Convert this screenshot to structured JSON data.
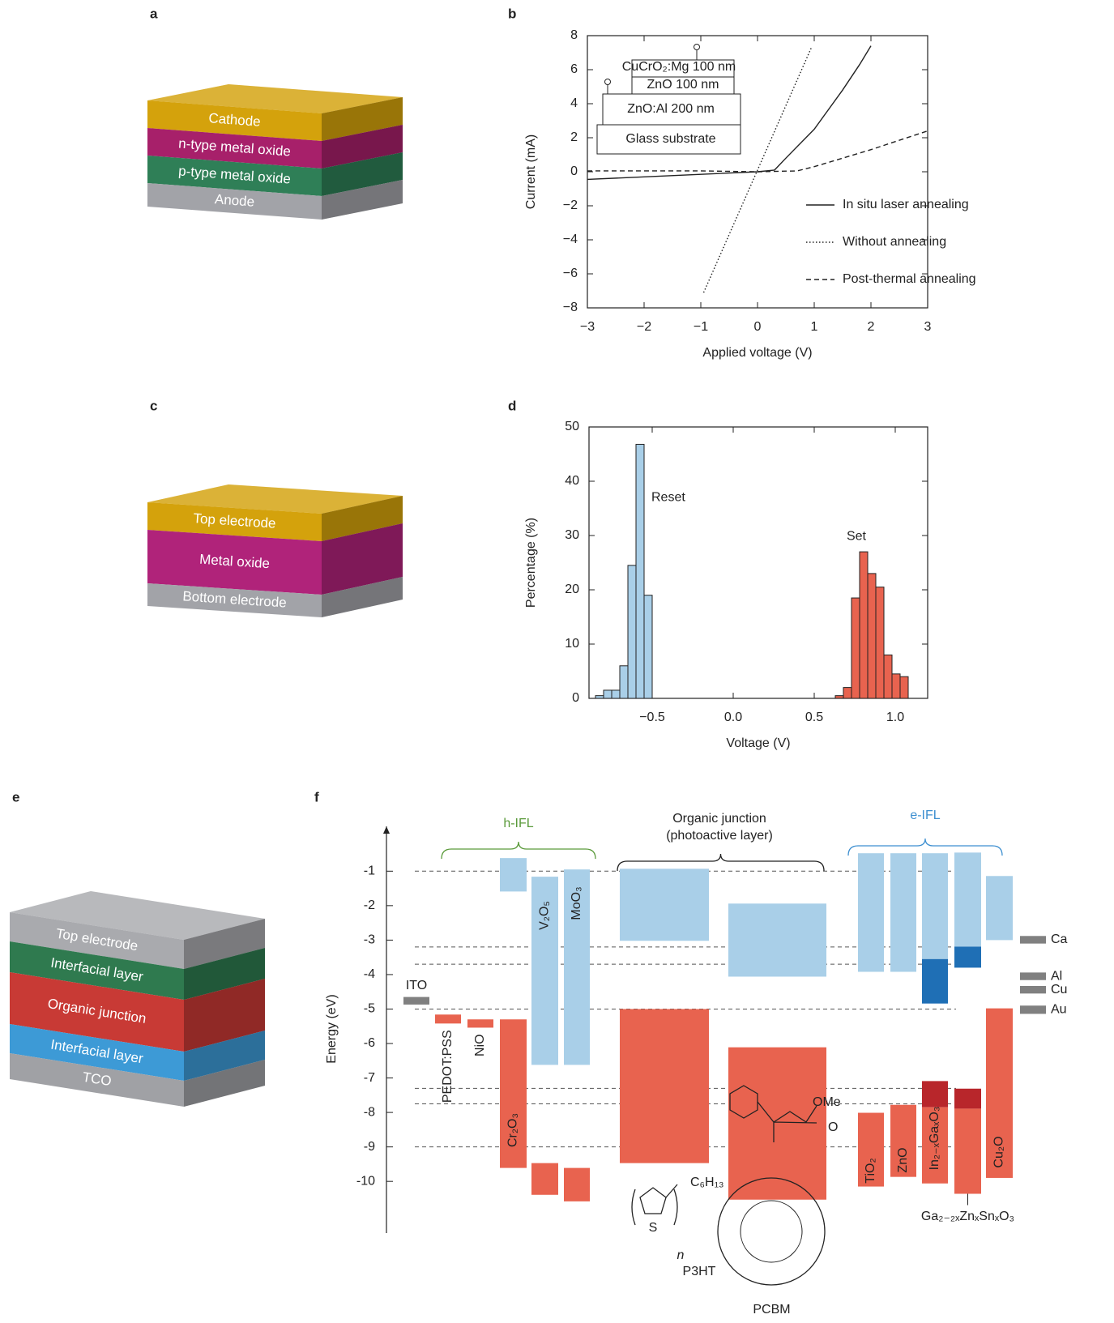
{
  "panel_labels": [
    "a",
    "b",
    "c",
    "d",
    "e",
    "f"
  ],
  "diagram_a": {
    "layers": [
      {
        "label": "Cathode",
        "color": "#d4a20c"
      },
      {
        "label": "n-type metal oxide",
        "color": "#a7206a"
      },
      {
        "label": "p-type metal oxide",
        "color": "#2f7f57"
      },
      {
        "label": "Anode",
        "color": "#a2a3a8"
      }
    ]
  },
  "diagram_c": {
    "layers": [
      {
        "label": "Top electrode",
        "color": "#d4a20c"
      },
      {
        "label": "Metal oxide",
        "color": "#b0237a"
      },
      {
        "label": "Bottom electrode",
        "color": "#a2a3a8"
      }
    ]
  },
  "diagram_e": {
    "layers": [
      {
        "label": "Top electrode",
        "color": "#a9aaae"
      },
      {
        "label": "Interfacial layer",
        "color": "#2f7a4f"
      },
      {
        "label": "Organic junction",
        "color": "#c83a35"
      },
      {
        "label": "Interfacial layer",
        "color": "#3d9ad6"
      },
      {
        "label": "TCO",
        "color": "#a0a1a5"
      }
    ]
  },
  "chart_data": [
    {
      "type": "line",
      "x_label": "Applied voltage (V)",
      "y_label": "Current (mA)",
      "xlim": [
        -3,
        3
      ],
      "ylim": [
        -8,
        8
      ],
      "xticks": [
        {
          "value": -3,
          "label": "−3"
        },
        {
          "value": -2,
          "label": "−2"
        },
        {
          "value": -1,
          "label": "−1"
        },
        0,
        1,
        2,
        3
      ],
      "yticks": [
        {
          "value": -8,
          "label": "−8"
        },
        {
          "value": -6,
          "label": "−6"
        },
        {
          "value": -4,
          "label": "−4"
        },
        {
          "value": -2,
          "label": "−2"
        },
        0,
        2,
        4,
        6,
        8
      ],
      "legend": "lower right",
      "series": [
        {
          "name": "In situ laser annealing",
          "color": "#222222",
          "style": "solid",
          "x": [
            -3,
            -2,
            -1,
            0,
            0.3,
            0.5,
            1,
            1.5,
            1.8,
            2
          ],
          "values": [
            -0.45,
            -0.3,
            -0.15,
            0,
            0.1,
            0.8,
            2.5,
            4.8,
            6.3,
            7.4
          ]
        },
        {
          "name": "Without annealing",
          "color": "#222222",
          "style": "dotted",
          "x": [
            -0.95,
            0.95
          ],
          "values": [
            -7.1,
            7.3
          ]
        },
        {
          "name": "Post-thermal annealing",
          "color": "#222222",
          "style": "dashed",
          "x": [
            -3,
            -1,
            0,
            0.7,
            1,
            2,
            3
          ],
          "values": [
            0.05,
            0.05,
            0,
            0.05,
            0.3,
            1.3,
            2.4
          ]
        }
      ],
      "inset": [
        "CuCrO₂:Mg 100 nm",
        "ZnO 100 nm",
        "ZnO:Al 200 nm",
        "Glass substrate"
      ]
    },
    {
      "type": "histogram",
      "x_label": "Voltage (V)",
      "y_label": "Percentage (%)",
      "xlim": [
        -0.89,
        1.2
      ],
      "ylim": [
        0,
        50
      ],
      "xticks": [
        {
          "value": -0.5,
          "label": "−0.5"
        },
        {
          "value": 0,
          "label": "0.0"
        },
        {
          "value": 0.5,
          "label": "0.5"
        },
        {
          "value": 1,
          "label": "1.0"
        }
      ],
      "yticks": [
        0,
        10,
        20,
        30,
        40,
        50
      ],
      "series": [
        {
          "name": "Reset",
          "color": "#a9cfe8",
          "bins": [
            -0.85,
            -0.8,
            -0.75,
            -0.7,
            -0.65,
            -0.6,
            -0.55,
            -0.5
          ],
          "values": [
            0.5,
            1.5,
            1.5,
            6,
            24.5,
            46.8,
            19
          ]
        },
        {
          "name": "Set",
          "color": "#e8634f",
          "bins": [
            0.63,
            0.68,
            0.73,
            0.78,
            0.83,
            0.88,
            0.93,
            0.98,
            1.03,
            1.08
          ],
          "values": [
            0.5,
            2,
            18.5,
            27,
            23,
            20.5,
            8,
            4.5,
            4
          ]
        }
      ]
    },
    {
      "type": "energy-level",
      "y_label": "Energy (eV)",
      "ylim": [
        -11.5,
        0.3
      ],
      "yticks": [
        -1,
        -2,
        -3,
        -4,
        -5,
        -6,
        -7,
        -8,
        -9,
        -10
      ],
      "levels": [
        -1,
        -3.2,
        -3.7,
        -5,
        -7.3,
        -7.75,
        -9
      ],
      "annotations": [
        "h-IFL",
        "Organic junction",
        "(photoactive layer)",
        "e-IFL"
      ],
      "structure_labels": [
        "C₆H₁₃",
        "S",
        "n",
        "OMe",
        "O"
      ],
      "materials": [
        {
          "label": "ITO",
          "bands": [
            {
              "range": [
                -4.65,
                -4.87
              ],
              "color": "#808080"
            }
          ]
        },
        {
          "label": "PEDOT:PSS",
          "bands": [
            {
              "range": [
                -5.16,
                -5.42
              ],
              "color": "#e8634f"
            }
          ]
        },
        {
          "label": "NiO",
          "bands": [
            {
              "range": [
                -5.3,
                -5.54
              ],
              "color": "#e8634f"
            }
          ]
        },
        {
          "label": "Cr₂O₃",
          "bands": [
            {
              "range": [
                -0.62,
                -1.59
              ],
              "color": "#a9cfe8"
            },
            {
              "range": [
                -5.3,
                -9.61
              ],
              "color": "#e8634f"
            }
          ]
        },
        {
          "label": "V₂O₅",
          "bands": [
            {
              "range": [
                -1.16,
                -6.62
              ],
              "color": "#a9cfe8"
            },
            {
              "range": [
                -9.47,
                -10.39
              ],
              "color": "#e8634f"
            }
          ]
        },
        {
          "label": "MoO₃",
          "bands": [
            {
              "range": [
                -0.95,
                -6.62
              ],
              "color": "#a9cfe8"
            },
            {
              "range": [
                -9.61,
                -10.58
              ],
              "color": "#e8634f"
            }
          ]
        },
        {
          "label": "P3HT",
          "bands": [
            {
              "range": [
                -0.93,
                -3.02
              ],
              "color": "#a9cfe8"
            },
            {
              "range": [
                -5.0,
                -9.47
              ],
              "color": "#e8634f"
            }
          ]
        },
        {
          "label": "PCBM",
          "bands": [
            {
              "range": [
                -1.94,
                -4.06
              ],
              "color": "#a9cfe8"
            },
            {
              "range": [
                -6.11,
                -10.53
              ],
              "color": "#e8634f"
            }
          ]
        },
        {
          "label": "TiO₂",
          "bands": [
            {
              "range": [
                -0.48,
                -3.92
              ],
              "color": "#a9cfe8"
            },
            {
              "range": [
                -8.01,
                -10.15
              ],
              "color": "#e8634f"
            }
          ]
        },
        {
          "label": "ZnO",
          "bands": [
            {
              "range": [
                -0.48,
                -3.92
              ],
              "color": "#a9cfe8"
            },
            {
              "range": [
                -7.78,
                -9.87
              ],
              "color": "#e8634f"
            }
          ]
        },
        {
          "label": "In₂₋ₓGaₓO₃",
          "bands": [
            {
              "range": [
                -0.48,
                -3.55
              ],
              "color": "#a9cfe8"
            },
            {
              "range": [
                -3.55,
                -4.84
              ],
              "color": "#1f6fb5"
            },
            {
              "range": [
                -7.09,
                -7.85
              ],
              "color": "#b8262b"
            },
            {
              "range": [
                -7.85,
                -10.06
              ],
              "color": "#e8634f"
            }
          ]
        },
        {
          "label": "Ga₂₋₂ₓZnₓSnₓO₃",
          "bands": [
            {
              "range": [
                -0.46,
                -3.19
              ],
              "color": "#a9cfe8"
            },
            {
              "range": [
                -3.19,
                -3.8
              ],
              "color": "#1f6fb5"
            },
            {
              "range": [
                -7.31,
                -7.89
              ],
              "color": "#b8262b"
            },
            {
              "range": [
                -7.89,
                -10.36
              ],
              "color": "#e8634f"
            }
          ]
        },
        {
          "label": "Cu₂O",
          "bands": [
            {
              "range": [
                -1.14,
                -3.0
              ],
              "color": "#a9cfe8"
            },
            {
              "range": [
                -4.98,
                -9.9
              ],
              "color": "#e8634f"
            }
          ]
        },
        {
          "label": "Ca",
          "bands": [
            {
              "range": [
                -2.88,
                -3.1
              ],
              "color": "#808080"
            }
          ]
        },
        {
          "label": "Al",
          "bands": [
            {
              "range": [
                -3.94,
                -4.16
              ],
              "color": "#808080"
            }
          ]
        },
        {
          "label": "Cu",
          "bands": [
            {
              "range": [
                -4.33,
                -4.55
              ],
              "color": "#808080"
            }
          ]
        },
        {
          "label": "Au",
          "bands": [
            {
              "range": [
                -4.9,
                -5.14
              ],
              "color": "#808080"
            }
          ]
        }
      ]
    }
  ]
}
